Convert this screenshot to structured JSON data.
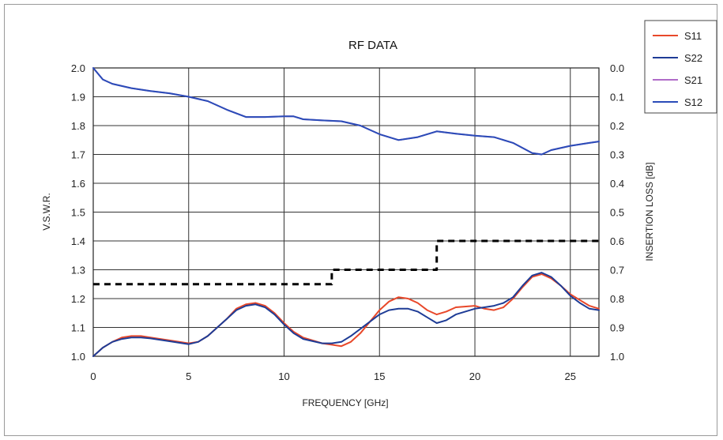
{
  "chart_data": {
    "type": "line",
    "title": "RF DATA",
    "xlabel": "FREQUENCY [GHz]",
    "ylabel": "V.S.W.R.",
    "y2label": "INSERTION LOSS [dB]",
    "xlim": [
      0,
      26.5
    ],
    "ylim": [
      1.0,
      2.0
    ],
    "y2lim": [
      1.0,
      0.0
    ],
    "xticks": [
      "0",
      "5",
      "10",
      "15",
      "20",
      "25"
    ],
    "xtick_values": [
      0,
      5,
      10,
      15,
      20,
      25
    ],
    "yticks": [
      "1.0",
      "1.1",
      "1.2",
      "1.3",
      "1.4",
      "1.5",
      "1.6",
      "1.7",
      "1.8",
      "1.9",
      "2.0"
    ],
    "y2ticks": [
      "1.0",
      "0.9",
      "0.8",
      "0.7",
      "0.6",
      "0.5",
      "0.4",
      "0.3",
      "0.2",
      "0.1",
      "0.0"
    ],
    "grid": true,
    "legend_position": "top-right, outside plot",
    "series": [
      {
        "name": "S11",
        "axis": "left",
        "color": "#e8482a",
        "x": [
          0,
          0.5,
          1,
          1.5,
          2,
          2.5,
          3,
          4,
          5,
          5.5,
          6,
          7,
          7.5,
          8,
          8.5,
          9,
          9.5,
          10,
          10.5,
          11,
          12,
          12.5,
          13,
          13.5,
          14,
          14.5,
          15,
          15.5,
          16,
          16.5,
          17,
          17.5,
          18,
          18.5,
          19,
          20,
          20.5,
          21,
          21.5,
          22,
          22.5,
          23,
          23.5,
          24,
          24.5,
          25,
          25.5,
          26,
          26.5
        ],
        "y": [
          1.0,
          1.03,
          1.05,
          1.065,
          1.07,
          1.07,
          1.065,
          1.055,
          1.045,
          1.05,
          1.07,
          1.13,
          1.165,
          1.18,
          1.185,
          1.175,
          1.15,
          1.115,
          1.085,
          1.065,
          1.045,
          1.04,
          1.035,
          1.05,
          1.08,
          1.12,
          1.16,
          1.19,
          1.205,
          1.2,
          1.185,
          1.16,
          1.145,
          1.155,
          1.17,
          1.175,
          1.165,
          1.16,
          1.17,
          1.2,
          1.24,
          1.275,
          1.285,
          1.27,
          1.245,
          1.215,
          1.195,
          1.175,
          1.165
        ]
      },
      {
        "name": "S22",
        "axis": "left",
        "color": "#1e3c96",
        "x": [
          0,
          0.5,
          1,
          1.5,
          2,
          2.5,
          3,
          4,
          5,
          5.5,
          6,
          7,
          7.5,
          8,
          8.5,
          9,
          9.5,
          10,
          10.5,
          11,
          12,
          12.5,
          13,
          13.5,
          14,
          14.5,
          15,
          15.5,
          16,
          16.5,
          17,
          17.5,
          18,
          18.5,
          19,
          20,
          20.5,
          21,
          21.5,
          22,
          22.5,
          23,
          23.5,
          24,
          24.5,
          25,
          25.5,
          26,
          26.5
        ],
        "y": [
          1.0,
          1.03,
          1.05,
          1.06,
          1.065,
          1.065,
          1.062,
          1.052,
          1.042,
          1.05,
          1.07,
          1.13,
          1.16,
          1.175,
          1.18,
          1.17,
          1.145,
          1.11,
          1.08,
          1.06,
          1.045,
          1.045,
          1.05,
          1.07,
          1.095,
          1.12,
          1.145,
          1.16,
          1.165,
          1.165,
          1.155,
          1.135,
          1.115,
          1.125,
          1.145,
          1.165,
          1.17,
          1.175,
          1.185,
          1.205,
          1.245,
          1.28,
          1.29,
          1.275,
          1.245,
          1.21,
          1.185,
          1.165,
          1.16
        ]
      },
      {
        "name": "S21",
        "axis": "right",
        "color": "#b06cc8",
        "x": [
          0,
          0.5,
          1,
          2,
          3,
          4,
          5,
          6,
          7,
          8,
          9,
          10,
          10.5,
          11,
          12,
          13,
          14,
          15,
          16,
          17,
          18,
          19,
          20,
          21,
          22,
          23,
          23.5,
          24,
          25,
          26,
          26.5
        ],
        "y": [
          0.0,
          0.04,
          0.055,
          0.07,
          0.08,
          0.088,
          0.1,
          0.115,
          0.145,
          0.17,
          0.17,
          0.168,
          0.168,
          0.178,
          0.182,
          0.185,
          0.2,
          0.23,
          0.25,
          0.24,
          0.22,
          0.228,
          0.235,
          0.24,
          0.26,
          0.295,
          0.3,
          0.285,
          0.27,
          0.26,
          0.255
        ]
      },
      {
        "name": "S12",
        "axis": "right",
        "color": "#2a4cb8",
        "x": [
          0,
          0.5,
          1,
          2,
          3,
          4,
          5,
          6,
          7,
          8,
          9,
          10,
          10.5,
          11,
          12,
          13,
          14,
          15,
          16,
          17,
          18,
          19,
          20,
          21,
          22,
          23,
          23.5,
          24,
          25,
          26,
          26.5
        ],
        "y": [
          0.0,
          0.04,
          0.055,
          0.07,
          0.08,
          0.088,
          0.1,
          0.115,
          0.145,
          0.17,
          0.17,
          0.168,
          0.168,
          0.178,
          0.182,
          0.185,
          0.2,
          0.23,
          0.25,
          0.24,
          0.22,
          0.228,
          0.235,
          0.24,
          0.26,
          0.295,
          0.3,
          0.285,
          0.27,
          0.26,
          0.255
        ]
      },
      {
        "axis": "left",
        "color": "#000000",
        "style": "dashed",
        "x": [
          0,
          12.5,
          12.5,
          18,
          18,
          26.5
        ],
        "y": [
          1.25,
          1.25,
          1.3,
          1.3,
          1.4,
          1.4
        ]
      }
    ],
    "legend": [
      {
        "label": "S11",
        "color": "#e8482a"
      },
      {
        "label": "S22",
        "color": "#1e3c96"
      },
      {
        "label": "S21",
        "color": "#b06cc8"
      },
      {
        "label": "S12",
        "color": "#2a4cb8"
      }
    ]
  }
}
